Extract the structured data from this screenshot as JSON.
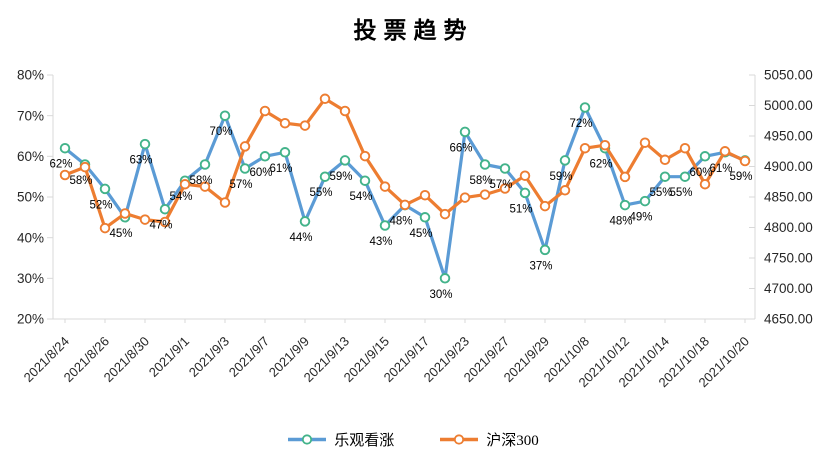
{
  "title": "投票趋势",
  "legend": [
    {
      "label": "乐观看涨",
      "color": "#5B9BD5",
      "marker_stroke": "#43B38A"
    },
    {
      "label": "沪深300",
      "color": "#ED7D31",
      "marker_stroke": "#ED7D31"
    }
  ],
  "colors": {
    "blue_line": "#5B9BD5",
    "orange_line": "#ED7D31",
    "marker_green": "#43B38A",
    "marker_fill": "#FFFFFF",
    "axis_line": "#D9D9D9",
    "axis_text": "#262626",
    "data_label_text": "#000000"
  },
  "chart_data": {
    "type": "line",
    "title": "投票趋势",
    "grid": false,
    "legend_position": "bottom",
    "x_tick_every": 2,
    "x_tick_labels": [
      "2021/8/24",
      "2021/8/26",
      "2021/8/30",
      "2021/9/1",
      "2021/9/3",
      "2021/9/7",
      "2021/9/9",
      "2021/9/13",
      "2021/9/15",
      "2021/9/17",
      "2021/9/23",
      "2021/9/27",
      "2021/9/29",
      "2021/10/8",
      "2021/10/12",
      "2021/10/14",
      "2021/10/18",
      "2021/10/20"
    ],
    "left_axis": {
      "ticks": [
        "80%",
        "70%",
        "60%",
        "50%",
        "40%",
        "30%",
        "20%"
      ],
      "min": 20,
      "max": 80
    },
    "right_axis": {
      "ticks": [
        "5050.00",
        "5000.00",
        "4950.00",
        "4900.00",
        "4850.00",
        "4800.00",
        "4750.00",
        "4700.00",
        "4650.00"
      ],
      "min": 4650,
      "max": 5050
    },
    "series": [
      {
        "name": "乐观看涨",
        "axis": "left",
        "color": "#5B9BD5",
        "marker_stroke": "#43B38A",
        "values": [
          62,
          58,
          52,
          45,
          63,
          47,
          54,
          58,
          70,
          57,
          60,
          61,
          44,
          55,
          59,
          54,
          43,
          48,
          45,
          30,
          66,
          58,
          57,
          51,
          37,
          59,
          72,
          62,
          48,
          49,
          55,
          55,
          60,
          61,
          59
        ],
        "labels": [
          "62%",
          "58%",
          "52%",
          "45%",
          "63%",
          "47%",
          "54%",
          "58%",
          "70%",
          "57%",
          "60%",
          "61%",
          "44%",
          "55%",
          "59%",
          "54%",
          "43%",
          "48%",
          "45%",
          "30%",
          "66%",
          "58%",
          "57%",
          "51%",
          "37%",
          "59%",
          "72%",
          "62%",
          "48%",
          "49%",
          "55%",
          "55%",
          "60%",
          "61%",
          "59%"
        ]
      },
      {
        "name": "沪深300",
        "axis": "right",
        "color": "#ED7D31",
        "marker_stroke": "#ED7D31",
        "values": [
          4886,
          4899,
          4799,
          4823,
          4813,
          4809,
          4871,
          4867,
          4841,
          4933,
          4991,
          4971,
          4967,
          5011,
          4991,
          4917,
          4867,
          4837,
          4853,
          4822,
          4849,
          4854,
          4864,
          4885,
          4835,
          4861,
          4930,
          4935,
          4883,
          4939,
          4911,
          4930,
          4871,
          4925,
          4909
        ]
      }
    ]
  }
}
